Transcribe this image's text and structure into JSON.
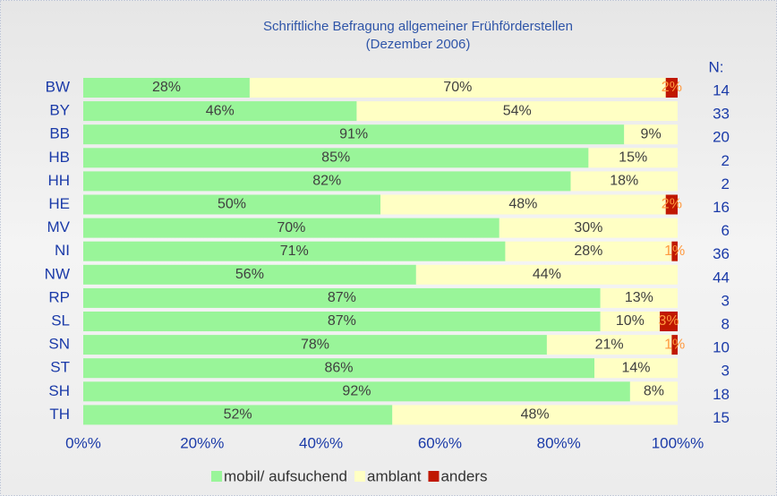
{
  "chart_data": {
    "type": "stacked_barh",
    "title": "Schriftliche Befragung allgemeiner Frühförderstellen",
    "subtitle": "(Dezember 2006)",
    "categories": [
      "BW",
      "BY",
      "BB",
      "HB",
      "HH",
      "HE",
      "MV",
      "NI",
      "NW",
      "RP",
      "SL",
      "SN",
      "ST",
      "SH",
      "TH"
    ],
    "series": [
      {
        "name": "mobil/ aufsuchend",
        "color": "#99f599",
        "values": [
          28,
          46,
          91,
          85,
          82,
          50,
          70,
          71,
          56,
          87,
          87,
          78,
          86,
          92,
          52
        ],
        "value_labels": [
          "28%",
          "46%",
          "91%",
          "85%",
          "82%",
          "50%",
          "70%",
          "71%",
          "56%",
          "87%",
          "87%",
          "78%",
          "86%",
          "92%",
          "52%"
        ]
      },
      {
        "name": "amblant",
        "color": "#ffffc4",
        "values": [
          70,
          54,
          9,
          15,
          18,
          48,
          30,
          28,
          44,
          13,
          10,
          21,
          14,
          8,
          48
        ],
        "value_labels": [
          "70%",
          "54%",
          "9%",
          "15%",
          "18%",
          "48%",
          "30%",
          "28%",
          "44%",
          "13%",
          "10%",
          "21%",
          "14%",
          "8%",
          "48%"
        ]
      },
      {
        "name": "anders",
        "color": "#c01800",
        "values": [
          2,
          0,
          0,
          0,
          0,
          2,
          0,
          1,
          0,
          0,
          3,
          1,
          0,
          0,
          0
        ],
        "value_labels": [
          "2%",
          null,
          null,
          null,
          null,
          "2%",
          null,
          "1%",
          null,
          null,
          "3%",
          "1%",
          null,
          null,
          null
        ]
      }
    ],
    "xlim": [
      0,
      100
    ],
    "xticks": [
      {
        "value": 0,
        "label": "0%%"
      },
      {
        "value": 20,
        "label": "20%%"
      },
      {
        "value": 40,
        "label": "40%%"
      },
      {
        "value": 60,
        "label": "60%%"
      },
      {
        "value": 80,
        "label": "80%%"
      },
      {
        "value": 100,
        "label": "100%%"
      }
    ],
    "n_header": "N:",
    "n_values": [
      14,
      33,
      20,
      2,
      2,
      16,
      6,
      36,
      44,
      3,
      8,
      10,
      3,
      18,
      15
    ],
    "legend": "bottom"
  }
}
